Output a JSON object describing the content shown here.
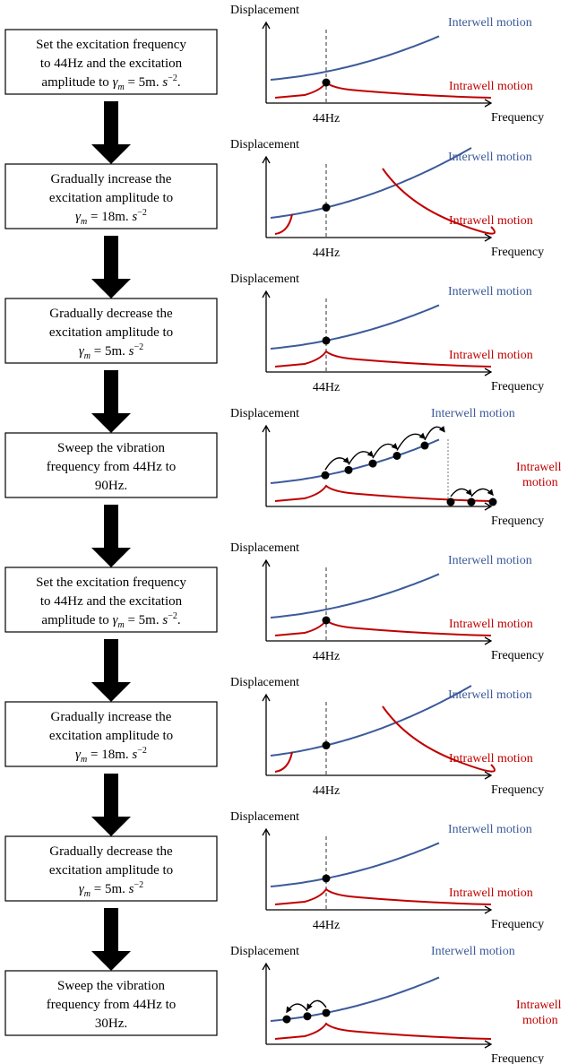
{
  "labels": {
    "displacement": "Displacement",
    "frequency": "Frequency",
    "interwell": "Interwell motion",
    "intrawell": "Intrawell motion",
    "intrawell_line1": "Intrawell",
    "intrawell_line2": "motion",
    "freq_mark": "44Hz"
  },
  "colors": {
    "interwell": "#3C5A9A",
    "intrawell": "#C00000",
    "axis": "#000000",
    "arrow": "#000000"
  },
  "steps": [
    {
      "kind": "set",
      "text_lines": [
        "Set the excitation frequency",
        "to 44Hz and the excitation",
        "amplitude to γ_m = 5m. s^-2."
      ],
      "curve": "low",
      "dot": "intrawell"
    },
    {
      "kind": "increase",
      "text_lines": [
        "Gradually increase the",
        "excitation amplitude to",
        "γ_m = 18m. s^-2"
      ],
      "curve": "high",
      "dot": "interwell"
    },
    {
      "kind": "decrease",
      "text_lines": [
        "Gradually decrease the",
        "excitation amplitude to",
        "γ_m = 5m. s^-2"
      ],
      "curve": "low",
      "dot": "interwell"
    },
    {
      "kind": "sweep_up",
      "text_lines": [
        "Sweep the vibration",
        "frequency from 44Hz to",
        "90Hz."
      ],
      "curve": "sweep_up",
      "dot": "interwell"
    },
    {
      "kind": "set",
      "text_lines": [
        "Set the excitation frequency",
        "to 44Hz and the excitation",
        "amplitude to γ_m = 5m. s^-2."
      ],
      "curve": "low",
      "dot": "intrawell"
    },
    {
      "kind": "increase",
      "text_lines": [
        "Gradually increase the",
        "excitation amplitude to",
        "γ_m = 18m. s^-2"
      ],
      "curve": "high",
      "dot": "interwell"
    },
    {
      "kind": "decrease",
      "text_lines": [
        "Gradually decrease the",
        "excitation amplitude to",
        "γ_m = 5m. s^-2"
      ],
      "curve": "low",
      "dot": "interwell"
    },
    {
      "kind": "sweep_down",
      "text_lines": [
        "Sweep the vibration",
        "frequency from 44Hz to",
        "30Hz."
      ],
      "curve": "sweep_down",
      "dot": "interwell"
    }
  ]
}
